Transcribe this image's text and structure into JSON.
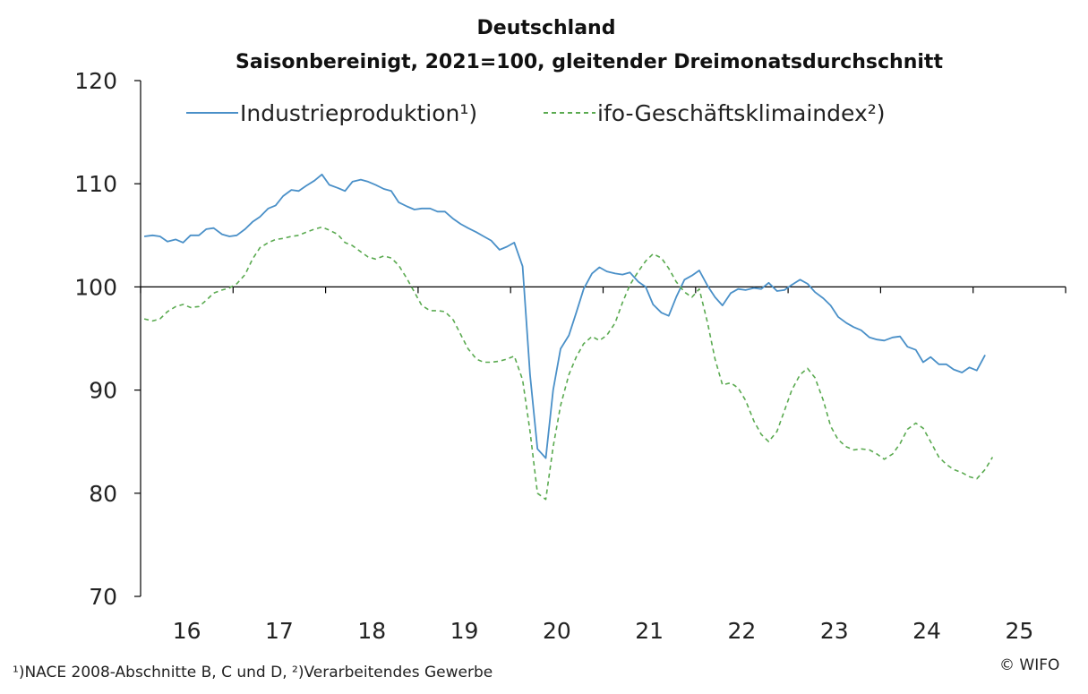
{
  "chart_data": {
    "type": "line",
    "title": "Deutschland",
    "subtitle": "Saisonbereinigt, 2021=100, gleitender Dreimonatsdurchschnitt",
    "ylim": [
      70,
      120
    ],
    "yticks": [
      70,
      80,
      90,
      100,
      110,
      120
    ],
    "xlim": [
      2015.5,
      2025.5
    ],
    "xticks": [
      {
        "label": "16",
        "x": 2016
      },
      {
        "label": "17",
        "x": 2017
      },
      {
        "label": "18",
        "x": 2018
      },
      {
        "label": "19",
        "x": 2019
      },
      {
        "label": "20",
        "x": 2020
      },
      {
        "label": "21",
        "x": 2021
      },
      {
        "label": "22",
        "x": 2022
      },
      {
        "label": "23",
        "x": 2023
      },
      {
        "label": "24",
        "x": 2024
      },
      {
        "label": "25",
        "x": 2025
      }
    ],
    "reference_line": 100,
    "legend_position": "top",
    "series": [
      {
        "name": "Industrieproduktion¹)",
        "color": "#4a90c8",
        "dash": "solid",
        "points": [
          [
            2015.54,
            104.9
          ],
          [
            2015.63,
            105.0
          ],
          [
            2015.71,
            104.9
          ],
          [
            2015.79,
            104.4
          ],
          [
            2015.88,
            104.6
          ],
          [
            2015.96,
            104.3
          ],
          [
            2016.04,
            105.0
          ],
          [
            2016.13,
            105.0
          ],
          [
            2016.21,
            105.6
          ],
          [
            2016.29,
            105.7
          ],
          [
            2016.38,
            105.1
          ],
          [
            2016.46,
            104.9
          ],
          [
            2016.54,
            105.0
          ],
          [
            2016.63,
            105.6
          ],
          [
            2016.71,
            106.3
          ],
          [
            2016.79,
            106.8
          ],
          [
            2016.88,
            107.6
          ],
          [
            2016.96,
            107.9
          ],
          [
            2017.04,
            108.8
          ],
          [
            2017.13,
            109.4
          ],
          [
            2017.21,
            109.3
          ],
          [
            2017.29,
            109.8
          ],
          [
            2017.38,
            110.3
          ],
          [
            2017.46,
            110.9
          ],
          [
            2017.54,
            109.9
          ],
          [
            2017.63,
            109.6
          ],
          [
            2017.71,
            109.3
          ],
          [
            2017.79,
            110.2
          ],
          [
            2017.88,
            110.4
          ],
          [
            2017.96,
            110.2
          ],
          [
            2018.04,
            109.9
          ],
          [
            2018.13,
            109.5
          ],
          [
            2018.21,
            109.3
          ],
          [
            2018.29,
            108.2
          ],
          [
            2018.38,
            107.8
          ],
          [
            2018.46,
            107.5
          ],
          [
            2018.54,
            107.6
          ],
          [
            2018.63,
            107.6
          ],
          [
            2018.71,
            107.3
          ],
          [
            2018.79,
            107.3
          ],
          [
            2018.88,
            106.6
          ],
          [
            2018.96,
            106.1
          ],
          [
            2019.04,
            105.7
          ],
          [
            2019.13,
            105.3
          ],
          [
            2019.21,
            104.9
          ],
          [
            2019.29,
            104.5
          ],
          [
            2019.38,
            103.6
          ],
          [
            2019.46,
            103.9
          ],
          [
            2019.54,
            104.3
          ],
          [
            2019.63,
            102.0
          ],
          [
            2019.71,
            91.5
          ],
          [
            2019.79,
            84.3
          ],
          [
            2019.88,
            83.4
          ],
          [
            2019.96,
            90.0
          ],
          [
            2020.04,
            94.0
          ],
          [
            2020.13,
            95.3
          ],
          [
            2020.21,
            97.5
          ],
          [
            2020.29,
            99.8
          ],
          [
            2020.38,
            101.3
          ],
          [
            2020.46,
            101.9
          ],
          [
            2020.54,
            101.5
          ],
          [
            2020.63,
            101.3
          ],
          [
            2020.71,
            101.2
          ],
          [
            2020.79,
            101.4
          ],
          [
            2020.88,
            100.5
          ],
          [
            2020.96,
            100.0
          ],
          [
            2021.04,
            98.3
          ],
          [
            2021.13,
            97.5
          ],
          [
            2021.21,
            97.2
          ],
          [
            2021.29,
            99.0
          ],
          [
            2021.38,
            100.7
          ],
          [
            2021.46,
            101.1
          ],
          [
            2021.54,
            101.6
          ],
          [
            2021.63,
            100.1
          ],
          [
            2021.71,
            99.0
          ],
          [
            2021.79,
            98.2
          ],
          [
            2021.88,
            99.4
          ],
          [
            2021.96,
            99.8
          ],
          [
            2022.04,
            99.7
          ],
          [
            2022.13,
            99.9
          ],
          [
            2022.21,
            99.8
          ],
          [
            2022.29,
            100.4
          ],
          [
            2022.38,
            99.6
          ],
          [
            2022.46,
            99.7
          ],
          [
            2022.54,
            100.2
          ],
          [
            2022.63,
            100.7
          ],
          [
            2022.71,
            100.3
          ],
          [
            2022.79,
            99.5
          ],
          [
            2022.88,
            98.9
          ],
          [
            2022.96,
            98.2
          ],
          [
            2023.04,
            97.1
          ],
          [
            2023.13,
            96.5
          ],
          [
            2023.21,
            96.1
          ],
          [
            2023.29,
            95.8
          ],
          [
            2023.38,
            95.1
          ],
          [
            2023.46,
            94.9
          ],
          [
            2023.54,
            94.8
          ],
          [
            2023.63,
            95.1
          ],
          [
            2023.71,
            95.2
          ],
          [
            2023.79,
            94.2
          ],
          [
            2023.88,
            93.9
          ],
          [
            2023.96,
            92.7
          ],
          [
            2024.04,
            93.2
          ],
          [
            2024.13,
            92.5
          ],
          [
            2024.21,
            92.5
          ],
          [
            2024.29,
            92.0
          ],
          [
            2024.38,
            91.7
          ],
          [
            2024.46,
            92.2
          ],
          [
            2024.54,
            91.9
          ],
          [
            2024.63,
            93.4
          ]
        ]
      },
      {
        "name": "ifo-Geschäftsklimaindex²)",
        "color": "#5aaa50",
        "dash": "dashed",
        "points": [
          [
            2015.54,
            96.9
          ],
          [
            2015.63,
            96.7
          ],
          [
            2015.71,
            96.9
          ],
          [
            2015.79,
            97.6
          ],
          [
            2015.88,
            98.1
          ],
          [
            2015.96,
            98.3
          ],
          [
            2016.04,
            98.0
          ],
          [
            2016.13,
            98.1
          ],
          [
            2016.21,
            98.7
          ],
          [
            2016.29,
            99.4
          ],
          [
            2016.38,
            99.7
          ],
          [
            2016.46,
            99.9
          ],
          [
            2016.54,
            100.3
          ],
          [
            2016.63,
            101.2
          ],
          [
            2016.71,
            102.7
          ],
          [
            2016.79,
            103.8
          ],
          [
            2016.88,
            104.3
          ],
          [
            2016.96,
            104.6
          ],
          [
            2017.04,
            104.7
          ],
          [
            2017.13,
            104.9
          ],
          [
            2017.21,
            105.0
          ],
          [
            2017.29,
            105.3
          ],
          [
            2017.38,
            105.6
          ],
          [
            2017.46,
            105.8
          ],
          [
            2017.54,
            105.5
          ],
          [
            2017.63,
            105.1
          ],
          [
            2017.71,
            104.3
          ],
          [
            2017.79,
            104.0
          ],
          [
            2017.88,
            103.4
          ],
          [
            2017.96,
            102.9
          ],
          [
            2018.04,
            102.7
          ],
          [
            2018.13,
            103.0
          ],
          [
            2018.21,
            102.8
          ],
          [
            2018.29,
            102.1
          ],
          [
            2018.38,
            100.8
          ],
          [
            2018.46,
            99.5
          ],
          [
            2018.54,
            98.2
          ],
          [
            2018.63,
            97.7
          ],
          [
            2018.71,
            97.7
          ],
          [
            2018.79,
            97.6
          ],
          [
            2018.88,
            96.8
          ],
          [
            2018.96,
            95.4
          ],
          [
            2019.04,
            94.0
          ],
          [
            2019.13,
            93.0
          ],
          [
            2019.21,
            92.7
          ],
          [
            2019.29,
            92.7
          ],
          [
            2019.38,
            92.8
          ],
          [
            2019.46,
            93.0
          ],
          [
            2019.54,
            93.3
          ],
          [
            2019.63,
            91.0
          ],
          [
            2019.71,
            86.0
          ],
          [
            2019.79,
            80.0
          ],
          [
            2019.88,
            79.4
          ],
          [
            2019.96,
            84.5
          ],
          [
            2020.04,
            88.5
          ],
          [
            2020.13,
            91.5
          ],
          [
            2020.21,
            93.2
          ],
          [
            2020.29,
            94.5
          ],
          [
            2020.38,
            95.2
          ],
          [
            2020.46,
            94.8
          ],
          [
            2020.54,
            95.3
          ],
          [
            2020.63,
            96.5
          ],
          [
            2020.71,
            98.5
          ],
          [
            2020.79,
            100.2
          ],
          [
            2020.88,
            101.5
          ],
          [
            2020.96,
            102.5
          ],
          [
            2021.04,
            103.2
          ],
          [
            2021.13,
            102.8
          ],
          [
            2021.21,
            101.8
          ],
          [
            2021.29,
            100.5
          ],
          [
            2021.38,
            99.5
          ],
          [
            2021.46,
            99.0
          ],
          [
            2021.54,
            99.8
          ],
          [
            2021.63,
            96.5
          ],
          [
            2021.71,
            93.0
          ],
          [
            2021.79,
            90.5
          ],
          [
            2021.88,
            90.7
          ],
          [
            2021.96,
            90.2
          ],
          [
            2022.04,
            89.0
          ],
          [
            2022.13,
            87.0
          ],
          [
            2022.21,
            85.7
          ],
          [
            2022.29,
            85.0
          ],
          [
            2022.38,
            86.0
          ],
          [
            2022.46,
            88.0
          ],
          [
            2022.54,
            90.0
          ],
          [
            2022.63,
            91.5
          ],
          [
            2022.71,
            92.1
          ],
          [
            2022.79,
            91.2
          ],
          [
            2022.88,
            89.0
          ],
          [
            2022.96,
            86.5
          ],
          [
            2023.04,
            85.2
          ],
          [
            2023.13,
            84.5
          ],
          [
            2023.21,
            84.2
          ],
          [
            2023.29,
            84.3
          ],
          [
            2023.38,
            84.2
          ],
          [
            2023.46,
            83.8
          ],
          [
            2023.54,
            83.3
          ],
          [
            2023.63,
            83.8
          ],
          [
            2023.71,
            84.8
          ],
          [
            2023.79,
            86.2
          ],
          [
            2023.88,
            86.8
          ],
          [
            2023.96,
            86.3
          ],
          [
            2024.04,
            85.0
          ],
          [
            2024.13,
            83.5
          ],
          [
            2024.21,
            82.8
          ],
          [
            2024.29,
            82.3
          ],
          [
            2024.38,
            82.0
          ],
          [
            2024.46,
            81.6
          ],
          [
            2024.54,
            81.4
          ],
          [
            2024.63,
            82.3
          ],
          [
            2024.71,
            83.5
          ]
        ]
      }
    ]
  },
  "footnote": "¹)NACE 2008-Abschnitte B, C und D,  ²)Verarbeitendes Gewerbe",
  "copyright": "© WIFO"
}
